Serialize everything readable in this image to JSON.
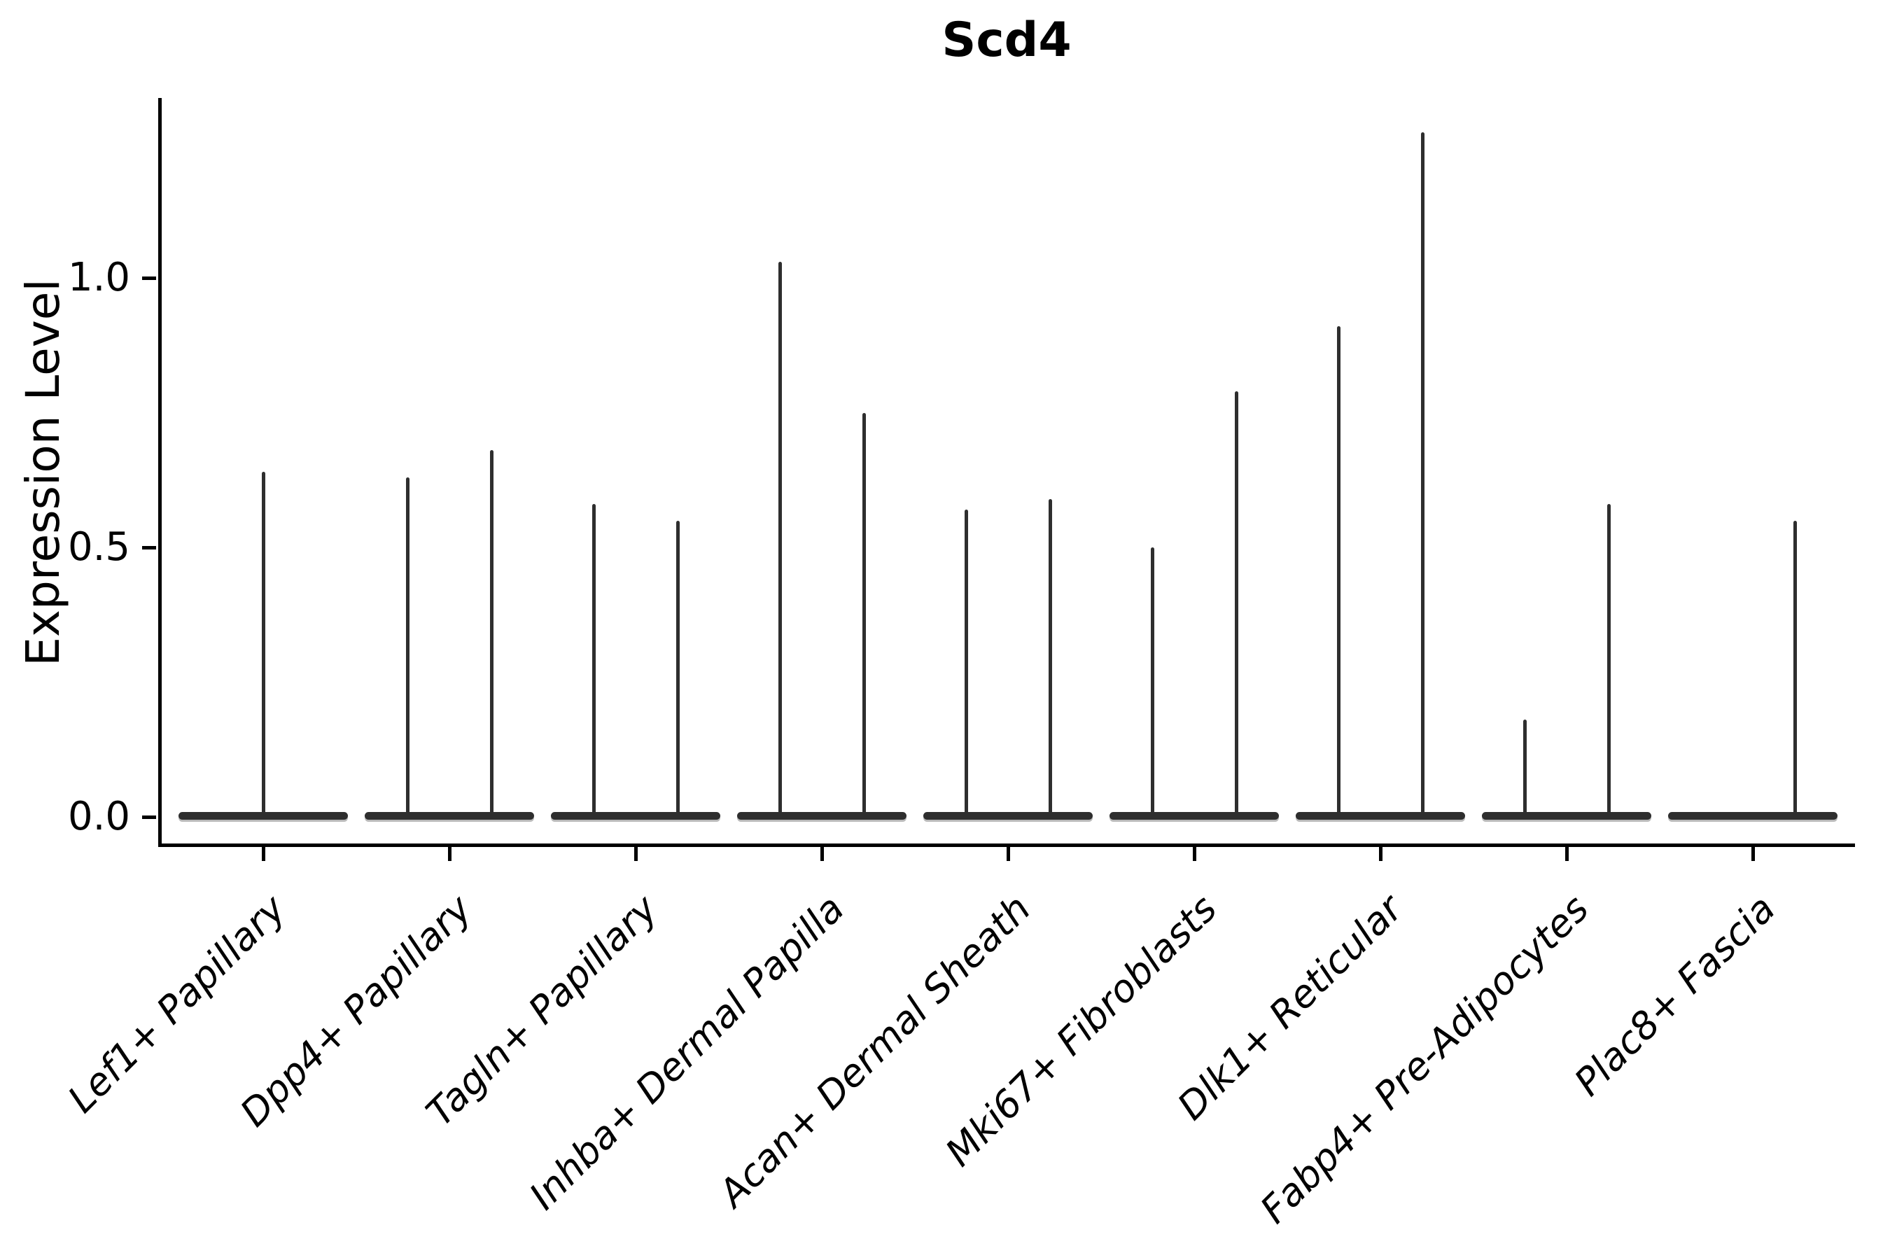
{
  "figure": {
    "title": "Scd4"
  },
  "chart_data": {
    "type": "violin",
    "title": "Scd4",
    "xlabel": "",
    "ylabel": "Expression Level",
    "yticks": [
      0.0,
      0.5,
      1.0
    ],
    "ytick_labels": [
      "0.0",
      "0.5",
      "1.0"
    ],
    "ylim": [
      -0.06,
      1.34
    ],
    "grid": false,
    "legend": "none",
    "note": "Each violin is collapsed flat at expression 0 (wide dark bar along the baseline) with one or two thin vertical density spikes reaching the peak expression value. Categories with two spikes have two half-width sub-violins; spike 'position' gives the sub-violin location within the category slot.",
    "style": {
      "violin_color": "#2e2e2e",
      "axis_color": "#000000",
      "background": "#ffffff",
      "xtick_label_style": "italic",
      "xtick_rotation_deg": 45,
      "spines": [
        "left",
        "bottom"
      ]
    },
    "categories": [
      "Lef1+ Papillary",
      "Dpp4+ Papillary",
      "Tagln+ Papillary",
      "Inhba+ Dermal Papilla",
      "Acan+ Dermal Sheath",
      "Mki67+ Fibroblasts",
      "Dlk1+ Reticular",
      "Fabp4+ Pre-Adipocytes",
      "Plac8+ Fascia"
    ],
    "violins": [
      {
        "category": "Lef1+ Papillary",
        "baseline_value": 0,
        "spikes": [
          {
            "position": "center",
            "peak": 0.64
          }
        ]
      },
      {
        "category": "Dpp4+ Papillary",
        "baseline_value": 0,
        "spikes": [
          {
            "position": "left",
            "peak": 0.63
          },
          {
            "position": "right",
            "peak": 0.68
          }
        ]
      },
      {
        "category": "Tagln+ Papillary",
        "baseline_value": 0,
        "spikes": [
          {
            "position": "left",
            "peak": 0.58
          },
          {
            "position": "right",
            "peak": 0.55
          }
        ]
      },
      {
        "category": "Inhba+ Dermal Papilla",
        "baseline_value": 0,
        "spikes": [
          {
            "position": "left",
            "peak": 1.03
          },
          {
            "position": "right",
            "peak": 0.75
          }
        ]
      },
      {
        "category": "Acan+ Dermal Sheath",
        "baseline_value": 0,
        "spikes": [
          {
            "position": "left",
            "peak": 0.57
          },
          {
            "position": "right",
            "peak": 0.59
          }
        ]
      },
      {
        "category": "Mki67+ Fibroblasts",
        "baseline_value": 0,
        "spikes": [
          {
            "position": "left",
            "peak": 0.5
          },
          {
            "position": "right",
            "peak": 0.79
          }
        ]
      },
      {
        "category": "Dlk1+ Reticular",
        "baseline_value": 0,
        "spikes": [
          {
            "position": "left",
            "peak": 0.91
          },
          {
            "position": "right",
            "peak": 1.27
          }
        ]
      },
      {
        "category": "Fabp4+ Pre-Adipocytes",
        "baseline_value": 0,
        "spikes": [
          {
            "position": "left",
            "peak": 0.18
          },
          {
            "position": "right",
            "peak": 0.58
          }
        ]
      },
      {
        "category": "Plac8+ Fascia",
        "baseline_value": 0,
        "spikes": [
          {
            "position": "right",
            "peak": 0.55
          }
        ]
      }
    ]
  }
}
